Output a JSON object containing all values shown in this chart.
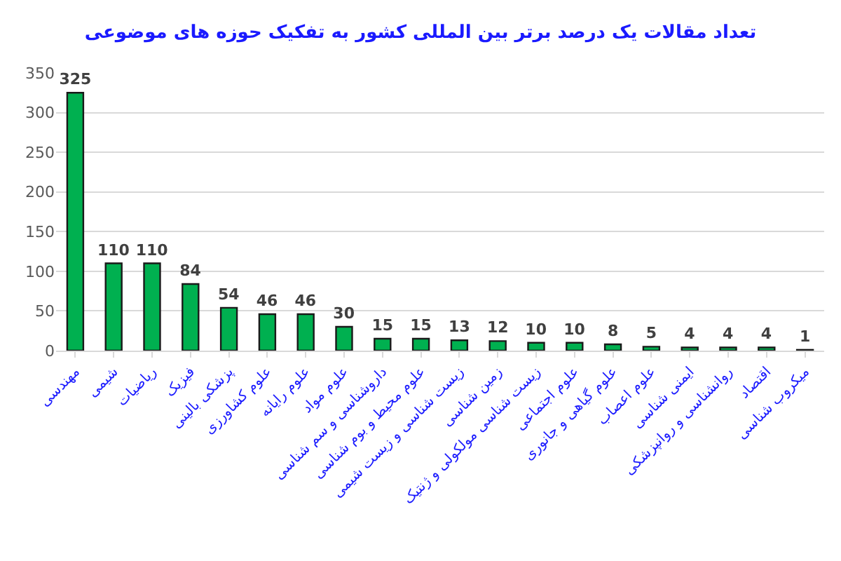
{
  "chart_data": {
    "type": "bar",
    "title": "تعداد مقالات یک درصد برتر بین المللی کشور به تفکیک حوزه های موضوعی",
    "categories": [
      "مهندسی",
      "شیمی",
      "ریاضیات",
      "فیزیک",
      "پزشکی بالینی",
      "علوم کشاورزی",
      "علوم رایانه",
      "علوم مواد",
      "داروشناسی و سم شناسی",
      "علوم محیط و بوم شناسی",
      "زیست شناسی و زیست شیمی",
      "زمین شناسی",
      "زیست شناسی مولکولی و ژنتیک",
      "علوم اجتماعی",
      "علوم گیاهی و جانوری",
      "علوم اعصاب",
      "ایمنی شناسی",
      "روانشناسی و روانپزشکی",
      "اقتصاد",
      "میکروب شناسی"
    ],
    "values": [
      325,
      110,
      110,
      84,
      54,
      46,
      46,
      30,
      15,
      15,
      13,
      12,
      10,
      10,
      8,
      5,
      4,
      4,
      4,
      1
    ],
    "color": "#00b050",
    "ylim": [
      0,
      350
    ],
    "yticks": [
      0,
      50,
      100,
      150,
      200,
      250,
      300,
      350
    ],
    "grid": "y",
    "data_labels": true
  }
}
